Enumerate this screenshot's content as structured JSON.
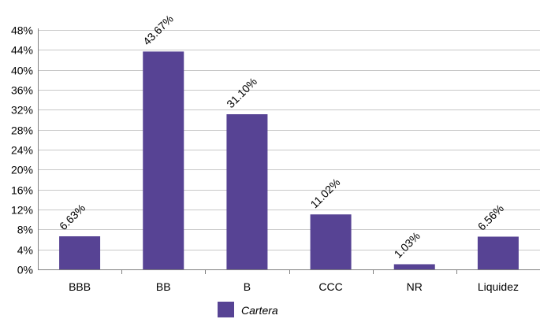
{
  "chart_data": {
    "type": "bar",
    "categories": [
      "BBB",
      "BB",
      "B",
      "CCC",
      "NR",
      "Liquidez"
    ],
    "series": [
      {
        "name": "Cartera",
        "values": [
          6.63,
          43.67,
          31.1,
          11.02,
          1.03,
          6.56
        ],
        "data_labels": [
          "6.63%",
          "43.67%",
          "31.10%",
          "11.02%",
          "1.03%",
          "6.56%"
        ],
        "color": "#574394"
      }
    ],
    "y_ticks": [
      0,
      4,
      8,
      12,
      16,
      20,
      24,
      28,
      32,
      36,
      40,
      44,
      48
    ],
    "y_tick_labels": [
      "0%",
      "4%",
      "8%",
      "12%",
      "16%",
      "20%",
      "24%",
      "28%",
      "32%",
      "36%",
      "40%",
      "44%",
      "48%"
    ],
    "ylim": [
      0,
      48
    ],
    "grid": true,
    "legend_position": "bottom-center",
    "grid_color": "#c8c8c8",
    "axis_color": "#808080"
  }
}
